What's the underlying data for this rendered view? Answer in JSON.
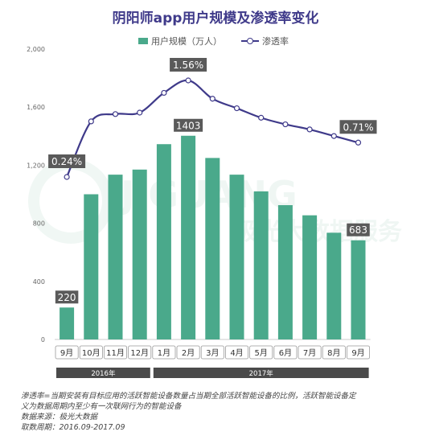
{
  "chart_data": {
    "type": "bar+line",
    "title": "阴阳师app用户规模及渗透率变化",
    "categories": [
      "9月",
      "10月",
      "11月",
      "12月",
      "1月",
      "2月",
      "3月",
      "4月",
      "5月",
      "6月",
      "7月",
      "8月",
      "9月"
    ],
    "groups": [
      {
        "label": "2016年",
        "range": [
          0,
          3
        ]
      },
      {
        "label": "2017年",
        "range": [
          4,
          12
        ]
      }
    ],
    "series": [
      {
        "name": "用户规模（万人）",
        "type": "bar",
        "color": "#4aa98b",
        "values": [
          220,
          1000,
          1135,
          1170,
          1345,
          1403,
          1250,
          1135,
          1020,
          925,
          855,
          735,
          683
        ]
      },
      {
        "name": "渗透率",
        "type": "line",
        "color": "#3f3a8a",
        "values": [
          0.24,
          1.0,
          1.1,
          1.12,
          1.39,
          1.56,
          1.31,
          1.18,
          1.05,
          0.96,
          0.89,
          0.8,
          0.71
        ]
      }
    ],
    "bar_value_labels": [
      {
        "index": 0,
        "text": "220"
      },
      {
        "index": 5,
        "text": "1403"
      },
      {
        "index": 12,
        "text": "683"
      }
    ],
    "line_value_labels": [
      {
        "index": 0,
        "text": "0.24%"
      },
      {
        "index": 5,
        "text": "1.56%"
      },
      {
        "index": 12,
        "text": "0.71%"
      }
    ],
    "y_ticks": [
      "0",
      "400",
      "800",
      "1,200",
      "1,600",
      "2,000"
    ],
    "ylim": [
      0,
      2000
    ]
  },
  "legend": {
    "bar_label": "用户规模（万人）",
    "line_label": "渗透率"
  },
  "watermark": "JIGUANG 极光大数据服务",
  "footnote": {
    "line1": "渗透率=当期安装有目标应用的活跃智能设备数量占当期全部活跃智能设备的比例，活跃智能设备定",
    "line2": "义为数据周期内至少有一次联网行为的智能设备",
    "line3": "数据来源：极光大数据",
    "line4": "取数周期：2016.09-2017.09"
  }
}
